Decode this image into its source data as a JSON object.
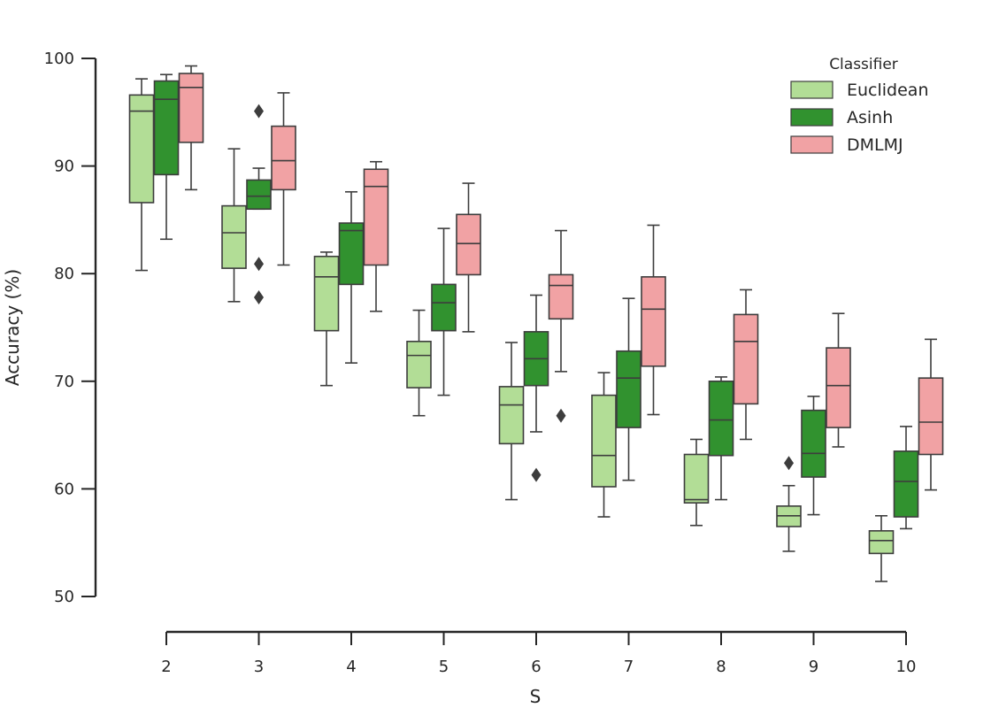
{
  "chart_data": {
    "type": "box",
    "xlabel": "S",
    "ylabel": "Accuracy (%)",
    "categories": [
      "2",
      "3",
      "4",
      "5",
      "6",
      "7",
      "8",
      "9",
      "10"
    ],
    "ylim": [
      50,
      100
    ],
    "yticks": [
      50,
      60,
      70,
      80,
      90,
      100
    ],
    "legend": {
      "title": "Classifier",
      "position": "top-right"
    },
    "grid": false,
    "series": [
      {
        "name": "Euclidean",
        "color": "#b2dd96",
        "boxes": [
          {
            "whislo": 80.3,
            "q1": 86.6,
            "med": 95.1,
            "q3": 96.6,
            "whishi": 98.1,
            "fliers": []
          },
          {
            "whislo": 77.4,
            "q1": 80.5,
            "med": 83.8,
            "q3": 86.3,
            "whishi": 91.6,
            "fliers": []
          },
          {
            "whislo": 69.6,
            "q1": 74.7,
            "med": 79.7,
            "q3": 81.6,
            "whishi": 82.0,
            "fliers": []
          },
          {
            "whislo": 66.8,
            "q1": 69.4,
            "med": 72.4,
            "q3": 73.7,
            "whishi": 76.6,
            "fliers": []
          },
          {
            "whislo": 59.0,
            "q1": 64.2,
            "med": 67.8,
            "q3": 69.5,
            "whishi": 73.6,
            "fliers": []
          },
          {
            "whislo": 57.4,
            "q1": 60.2,
            "med": 63.1,
            "q3": 68.7,
            "whishi": 70.8,
            "fliers": []
          },
          {
            "whislo": 56.6,
            "q1": 58.7,
            "med": 59.0,
            "q3": 63.2,
            "whishi": 64.6,
            "fliers": []
          },
          {
            "whislo": 54.2,
            "q1": 56.5,
            "med": 57.5,
            "q3": 58.4,
            "whishi": 60.3,
            "fliers": [
              62.4
            ]
          },
          {
            "whislo": 51.4,
            "q1": 54.0,
            "med": 55.2,
            "q3": 56.1,
            "whishi": 57.5,
            "fliers": []
          }
        ]
      },
      {
        "name": "Asinh",
        "color": "#31922f",
        "boxes": [
          {
            "whislo": 83.2,
            "q1": 89.2,
            "med": 96.2,
            "q3": 97.9,
            "whishi": 98.5,
            "fliers": []
          },
          {
            "whislo": 86.0,
            "q1": 86.0,
            "med": 87.2,
            "q3": 88.7,
            "whishi": 89.8,
            "fliers": [
              95.1,
              80.9,
              77.8
            ]
          },
          {
            "whislo": 71.7,
            "q1": 79.0,
            "med": 84.0,
            "q3": 84.7,
            "whishi": 87.6,
            "fliers": []
          },
          {
            "whislo": 68.7,
            "q1": 74.7,
            "med": 77.3,
            "q3": 79.0,
            "whishi": 84.2,
            "fliers": []
          },
          {
            "whislo": 65.3,
            "q1": 69.6,
            "med": 72.1,
            "q3": 74.6,
            "whishi": 78.0,
            "fliers": [
              61.3
            ]
          },
          {
            "whislo": 60.8,
            "q1": 65.7,
            "med": 70.3,
            "q3": 72.8,
            "whishi": 77.7,
            "fliers": []
          },
          {
            "whislo": 59.0,
            "q1": 63.1,
            "med": 66.4,
            "q3": 70.0,
            "whishi": 70.4,
            "fliers": []
          },
          {
            "whislo": 57.6,
            "q1": 61.1,
            "med": 63.3,
            "q3": 67.3,
            "whishi": 68.6,
            "fliers": []
          },
          {
            "whislo": 56.3,
            "q1": 57.4,
            "med": 60.7,
            "q3": 63.5,
            "whishi": 65.8,
            "fliers": []
          }
        ]
      },
      {
        "name": "DMLMJ",
        "color": "#f1a2a4",
        "boxes": [
          {
            "whislo": 87.8,
            "q1": 92.2,
            "med": 97.3,
            "q3": 98.6,
            "whishi": 99.3,
            "fliers": []
          },
          {
            "whislo": 80.8,
            "q1": 87.8,
            "med": 90.5,
            "q3": 93.7,
            "whishi": 96.8,
            "fliers": []
          },
          {
            "whislo": 76.5,
            "q1": 80.8,
            "med": 88.1,
            "q3": 89.7,
            "whishi": 90.4,
            "fliers": []
          },
          {
            "whislo": 74.6,
            "q1": 79.9,
            "med": 82.8,
            "q3": 85.5,
            "whishi": 88.4,
            "fliers": []
          },
          {
            "whislo": 70.9,
            "q1": 75.8,
            "med": 78.9,
            "q3": 79.9,
            "whishi": 84.0,
            "fliers": [
              66.8
            ]
          },
          {
            "whislo": 66.9,
            "q1": 71.4,
            "med": 76.7,
            "q3": 79.7,
            "whishi": 84.5,
            "fliers": []
          },
          {
            "whislo": 64.6,
            "q1": 67.9,
            "med": 73.7,
            "q3": 76.2,
            "whishi": 78.5,
            "fliers": []
          },
          {
            "whislo": 63.9,
            "q1": 65.7,
            "med": 69.6,
            "q3": 73.1,
            "whishi": 76.3,
            "fliers": []
          },
          {
            "whislo": 59.9,
            "q1": 63.2,
            "med": 66.2,
            "q3": 70.3,
            "whishi": 73.9,
            "fliers": []
          }
        ]
      }
    ]
  }
}
